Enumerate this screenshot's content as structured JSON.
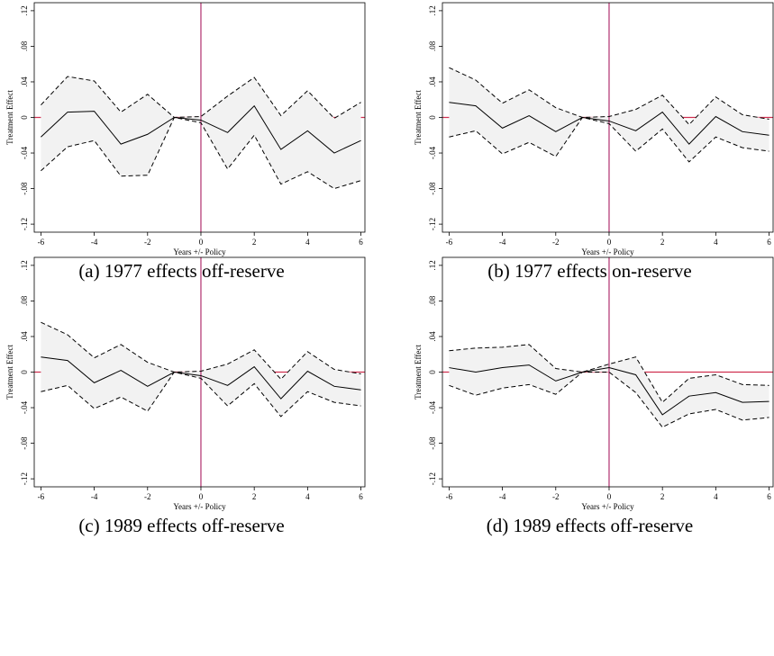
{
  "chart_data": [
    {
      "type": "line",
      "caption": "(a) 1977 effects off-reserve",
      "xlabel": "Years +/- Policy",
      "ylabel": "Treatment Effect",
      "x": [
        -6,
        -5,
        -4,
        -3,
        -2,
        -1,
        0,
        1,
        2,
        3,
        4,
        5,
        6
      ],
      "values": [
        -0.022,
        0.006,
        0.007,
        -0.03,
        -0.019,
        0,
        -0.003,
        -0.017,
        0.013,
        -0.036,
        -0.015,
        -0.04,
        -0.026
      ],
      "ci_upper": [
        0.014,
        0.046,
        0.041,
        0.006,
        0.026,
        0,
        0.001,
        0.024,
        0.045,
        0.002,
        0.03,
        -0.001,
        0.017
      ],
      "ci_lower": [
        -0.06,
        -0.033,
        -0.026,
        -0.066,
        -0.065,
        0,
        -0.006,
        -0.058,
        -0.02,
        -0.075,
        -0.061,
        -0.08,
        -0.071
      ],
      "color": "#000000",
      "band_color": "#f2f2f2",
      "xline": 0,
      "yline": 0,
      "xline_color": "#b0306e",
      "yline_color": "#d03050",
      "xlim": [
        -6.25,
        6.15
      ],
      "ylim": [
        -0.129,
        0.129
      ],
      "xticks": [
        -6,
        -4,
        -2,
        0,
        2,
        4,
        6
      ],
      "yticks": [
        {
          "value": -0.12,
          "label": "-.12"
        },
        {
          "value": -0.08,
          "label": "-.08"
        },
        {
          "value": -0.04,
          "label": "-.04"
        },
        0,
        {
          "value": 0.04,
          "label": ".04"
        },
        {
          "value": 0.08,
          "label": ".08"
        },
        {
          "value": 0.12,
          "label": ".12"
        }
      ]
    },
    {
      "type": "line",
      "caption": "(b) 1977 effects on-reserve",
      "xlabel": "Years +/- Policy",
      "ylabel": "Treatment Effect",
      "x": [
        -6,
        -5,
        -4,
        -3,
        -2,
        -1,
        0,
        1,
        2,
        3,
        4,
        5,
        6
      ],
      "values": [
        0.017,
        0.013,
        -0.012,
        0.002,
        -0.016,
        0,
        -0.004,
        -0.015,
        0.006,
        -0.03,
        0.001,
        -0.016,
        -0.02
      ],
      "ci_upper": [
        0.056,
        0.042,
        0.016,
        0.031,
        0.011,
        0,
        0.001,
        0.009,
        0.025,
        -0.008,
        0.023,
        0.003,
        -0.002
      ],
      "ci_lower": [
        -0.022,
        -0.015,
        -0.041,
        -0.028,
        -0.044,
        0,
        -0.007,
        -0.038,
        -0.013,
        -0.05,
        -0.022,
        -0.034,
        -0.038
      ],
      "color": "#000000",
      "band_color": "#f2f2f2",
      "xline": 0,
      "yline": 0,
      "xline_color": "#b0306e",
      "yline_color": "#d03050",
      "xlim": [
        -6.25,
        6.15
      ],
      "ylim": [
        -0.129,
        0.129
      ],
      "xticks": [
        -6,
        -4,
        -2,
        0,
        2,
        4,
        6
      ],
      "yticks": [
        {
          "value": -0.12,
          "label": "-.12"
        },
        {
          "value": -0.08,
          "label": "-.08"
        },
        {
          "value": -0.04,
          "label": "-.04"
        },
        0,
        {
          "value": 0.04,
          "label": ".04"
        },
        {
          "value": 0.08,
          "label": ".08"
        },
        {
          "value": 0.12,
          "label": ".12"
        }
      ]
    },
    {
      "type": "line",
      "caption": "(c) 1989 effects off-reserve",
      "xlabel": "Years +/- Policy",
      "ylabel": "Treatment Effect",
      "x": [
        -6,
        -5,
        -4,
        -3,
        -2,
        -1,
        0,
        1,
        2,
        3,
        4,
        5,
        6
      ],
      "values": [
        0.017,
        0.013,
        -0.012,
        0.002,
        -0.016,
        0,
        -0.004,
        -0.015,
        0.006,
        -0.03,
        0.001,
        -0.016,
        -0.02
      ],
      "ci_upper": [
        0.056,
        0.042,
        0.016,
        0.031,
        0.011,
        0,
        0.001,
        0.009,
        0.025,
        -0.008,
        0.023,
        0.003,
        -0.002
      ],
      "ci_lower": [
        -0.022,
        -0.015,
        -0.041,
        -0.028,
        -0.044,
        0,
        -0.007,
        -0.038,
        -0.013,
        -0.05,
        -0.022,
        -0.034,
        -0.038
      ],
      "color": "#000000",
      "band_color": "#f2f2f2",
      "xline": 0,
      "yline": 0,
      "xline_color": "#b0306e",
      "yline_color": "#d03050",
      "xlim": [
        -6.25,
        6.15
      ],
      "ylim": [
        -0.129,
        0.129
      ],
      "xticks": [
        -6,
        -4,
        -2,
        0,
        2,
        4,
        6
      ],
      "yticks": [
        {
          "value": -0.12,
          "label": "-.12"
        },
        {
          "value": -0.08,
          "label": "-.08"
        },
        {
          "value": -0.04,
          "label": "-.04"
        },
        0,
        {
          "value": 0.04,
          "label": ".04"
        },
        {
          "value": 0.08,
          "label": ".08"
        },
        {
          "value": 0.12,
          "label": ".12"
        }
      ]
    },
    {
      "type": "line",
      "caption": "(d) 1989 effects off-reserve",
      "xlabel": "Years +/- Policy",
      "ylabel": "Treatment Effect",
      "x": [
        -6,
        -5,
        -4,
        -3,
        -2,
        -1,
        0,
        1,
        2,
        3,
        4,
        5,
        6
      ],
      "values": [
        0.005,
        0.0,
        0.005,
        0.008,
        -0.01,
        0,
        0.005,
        -0.003,
        -0.048,
        -0.027,
        -0.023,
        -0.034,
        -0.033
      ],
      "ci_upper": [
        0.024,
        0.027,
        0.028,
        0.031,
        0.004,
        0,
        0.009,
        0.017,
        -0.034,
        -0.007,
        -0.003,
        -0.014,
        -0.015
      ],
      "ci_lower": [
        -0.015,
        -0.026,
        -0.018,
        -0.014,
        -0.025,
        0,
        0.0,
        -0.023,
        -0.062,
        -0.047,
        -0.042,
        -0.054,
        -0.051
      ],
      "color": "#000000",
      "band_color": "#f2f2f2",
      "xline": 0,
      "yline": 0,
      "xline_color": "#b0306e",
      "yline_color": "#d03050",
      "xlim": [
        -6.25,
        6.15
      ],
      "ylim": [
        -0.129,
        0.129
      ],
      "xticks": [
        -6,
        -4,
        -2,
        0,
        2,
        4,
        6
      ],
      "yticks": [
        {
          "value": -0.12,
          "label": "-.12"
        },
        {
          "value": -0.08,
          "label": "-.08"
        },
        {
          "value": -0.04,
          "label": "-.04"
        },
        0,
        {
          "value": 0.04,
          "label": ".04"
        },
        {
          "value": 0.08,
          "label": ".08"
        },
        {
          "value": 0.12,
          "label": ".12"
        }
      ]
    }
  ]
}
